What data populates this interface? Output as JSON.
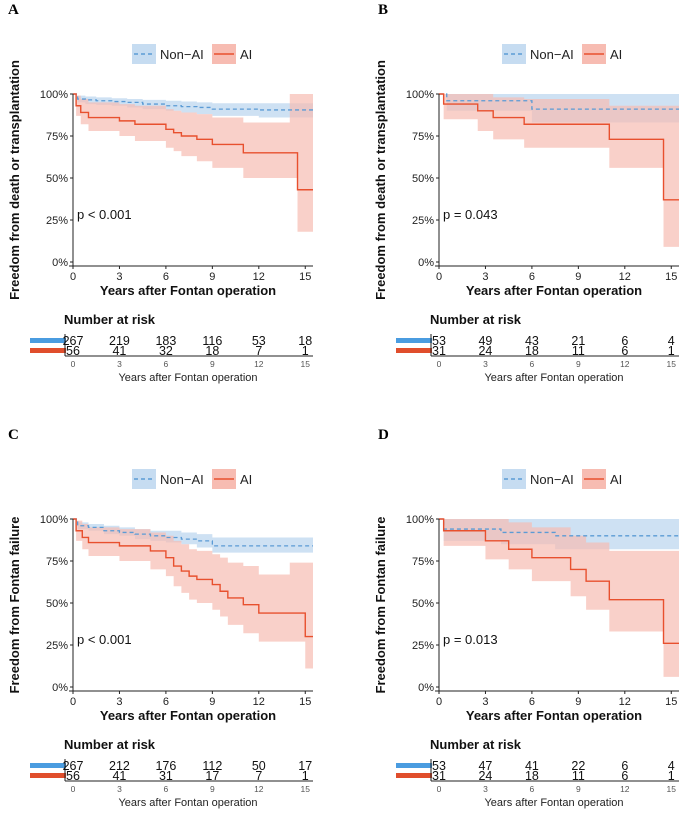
{
  "colors": {
    "non_ai": "#5b9bd5",
    "ai": "#e8502e",
    "non_ai_band": "#c6dcf1",
    "ai_band": "#f7bcb2",
    "risk_non_ai": "#4a9ce0",
    "risk_ai": "#e04e2c"
  },
  "legend": {
    "non_ai": "Non−AI",
    "ai": "AI"
  },
  "risk_table_title": "Number at risk",
  "chart_data": [
    {
      "type": "line",
      "panel": "A",
      "ylabel": "Freedom from death or transplantation",
      "xlabel": "Years after Fontan operation",
      "xlim": [
        0,
        15.5
      ],
      "ylim": [
        0,
        1
      ],
      "xticks": [
        0,
        3,
        6,
        9,
        12,
        15
      ],
      "yticks": [
        "0%",
        "25%",
        "50%",
        "75%",
        "100%"
      ],
      "pvalue": "p < 0.001",
      "series": [
        {
          "name": "Non−AI",
          "x": [
            0,
            0.3,
            0.8,
            1.5,
            2.5,
            3.5,
            4.5,
            6,
            7,
            8,
            9,
            12,
            15.5
          ],
          "y": [
            1.0,
            0.97,
            0.965,
            0.96,
            0.955,
            0.95,
            0.94,
            0.93,
            0.925,
            0.92,
            0.91,
            0.905,
            0.905
          ],
          "lower": [
            1.0,
            0.95,
            0.94,
            0.935,
            0.93,
            0.92,
            0.91,
            0.9,
            0.89,
            0.88,
            0.87,
            0.86,
            0.86
          ],
          "upper": [
            1.0,
            0.99,
            0.985,
            0.98,
            0.975,
            0.97,
            0.965,
            0.96,
            0.955,
            0.95,
            0.945,
            0.945,
            0.945
          ]
        },
        {
          "name": "AI",
          "x": [
            0,
            0.2,
            0.5,
            1,
            3,
            4,
            6,
            6.5,
            7,
            8,
            9,
            11,
            14,
            14.5,
            15.5
          ],
          "y": [
            1.0,
            0.93,
            0.89,
            0.86,
            0.84,
            0.82,
            0.79,
            0.77,
            0.75,
            0.73,
            0.7,
            0.65,
            0.65,
            0.43,
            0.43
          ],
          "lower": [
            1.0,
            0.87,
            0.82,
            0.78,
            0.75,
            0.72,
            0.68,
            0.66,
            0.63,
            0.6,
            0.56,
            0.5,
            0.5,
            0.18,
            0.18
          ],
          "upper": [
            1.0,
            0.99,
            0.97,
            0.95,
            0.94,
            0.93,
            0.91,
            0.9,
            0.89,
            0.88,
            0.86,
            0.83,
            1.0,
            1.0,
            1.0
          ]
        }
      ],
      "risk": {
        "non_ai": [
          "267",
          "219",
          "183",
          "116",
          "53",
          "18"
        ],
        "ai": [
          "56",
          "41",
          "32",
          "18",
          "7",
          "1"
        ]
      }
    },
    {
      "type": "line",
      "panel": "B",
      "ylabel": "Freedom from death or transplantation",
      "xlabel": "Years after Fontan operation",
      "xlim": [
        0,
        15.5
      ],
      "ylim": [
        0,
        1
      ],
      "xticks": [
        0,
        3,
        6,
        9,
        12,
        15
      ],
      "yticks": [
        "0%",
        "25%",
        "50%",
        "75%",
        "100%"
      ],
      "pvalue": "p = 0.043",
      "series": [
        {
          "name": "Non−AI",
          "x": [
            0,
            0.5,
            6,
            15.5
          ],
          "y": [
            1.0,
            0.96,
            0.91,
            0.91
          ],
          "lower": [
            1.0,
            0.9,
            0.83,
            0.83
          ],
          "upper": [
            1.0,
            1.0,
            1.0,
            1.0
          ]
        },
        {
          "name": "AI",
          "x": [
            0,
            0.3,
            2.5,
            3.5,
            5.5,
            11,
            14.5,
            15.5
          ],
          "y": [
            1.0,
            0.94,
            0.9,
            0.86,
            0.82,
            0.73,
            0.37,
            0.37
          ],
          "lower": [
            1.0,
            0.85,
            0.78,
            0.73,
            0.68,
            0.56,
            0.09,
            0.09
          ],
          "upper": [
            1.0,
            1.0,
            1.0,
            0.98,
            0.97,
            0.93,
            0.93,
            0.93
          ]
        }
      ],
      "risk": {
        "non_ai": [
          "53",
          "49",
          "43",
          "21",
          "6",
          "4"
        ],
        "ai": [
          "31",
          "24",
          "18",
          "11",
          "6",
          "1"
        ]
      }
    },
    {
      "type": "line",
      "panel": "C",
      "ylabel": "Freedom from Fontan failure",
      "xlabel": "Years after Fontan operation",
      "xlim": [
        0,
        15.5
      ],
      "ylim": [
        0,
        1
      ],
      "xticks": [
        0,
        3,
        6,
        9,
        12,
        15
      ],
      "yticks": [
        "0%",
        "25%",
        "50%",
        "75%",
        "100%"
      ],
      "pvalue": "p < 0.001",
      "series": [
        {
          "name": "Non−AI",
          "x": [
            0,
            0.3,
            1,
            2,
            3,
            4,
            5,
            6,
            7,
            8,
            9,
            15.5
          ],
          "y": [
            1.0,
            0.96,
            0.95,
            0.93,
            0.92,
            0.91,
            0.9,
            0.89,
            0.88,
            0.87,
            0.84,
            0.84
          ],
          "lower": [
            1.0,
            0.94,
            0.93,
            0.91,
            0.9,
            0.88,
            0.87,
            0.86,
            0.85,
            0.83,
            0.8,
            0.8
          ],
          "upper": [
            1.0,
            0.98,
            0.97,
            0.96,
            0.95,
            0.94,
            0.93,
            0.93,
            0.92,
            0.91,
            0.89,
            0.89
          ]
        },
        {
          "name": "AI",
          "x": [
            0,
            0.2,
            0.6,
            1,
            3,
            5,
            6,
            6.5,
            7,
            7.5,
            8,
            9,
            9.5,
            10,
            11,
            12,
            14,
            15,
            15.5
          ],
          "y": [
            1.0,
            0.93,
            0.89,
            0.86,
            0.84,
            0.81,
            0.77,
            0.72,
            0.69,
            0.66,
            0.64,
            0.61,
            0.57,
            0.53,
            0.49,
            0.44,
            0.44,
            0.3,
            0.3
          ],
          "lower": [
            1.0,
            0.87,
            0.82,
            0.78,
            0.75,
            0.7,
            0.66,
            0.6,
            0.56,
            0.52,
            0.5,
            0.46,
            0.42,
            0.37,
            0.32,
            0.27,
            0.27,
            0.11,
            0.11
          ],
          "upper": [
            1.0,
            0.99,
            0.97,
            0.95,
            0.94,
            0.92,
            0.9,
            0.87,
            0.85,
            0.82,
            0.81,
            0.79,
            0.77,
            0.74,
            0.72,
            0.67,
            0.74,
            0.74,
            0.74
          ]
        }
      ],
      "risk": {
        "non_ai": [
          "267",
          "212",
          "176",
          "112",
          "50",
          "17"
        ],
        "ai": [
          "56",
          "41",
          "31",
          "17",
          "7",
          "1"
        ]
      }
    },
    {
      "type": "line",
      "panel": "D",
      "ylabel": "Freedom from Fontan failure",
      "xlabel": "Years after Fontan operation",
      "xlim": [
        0,
        15.5
      ],
      "ylim": [
        0,
        1
      ],
      "xticks": [
        0,
        3,
        6,
        9,
        12,
        15
      ],
      "yticks": [
        "0%",
        "25%",
        "50%",
        "75%",
        "100%"
      ],
      "pvalue": "p = 0.013",
      "series": [
        {
          "name": "Non−AI",
          "x": [
            0,
            0.3,
            4,
            7.5,
            15.5
          ],
          "y": [
            1.0,
            0.94,
            0.92,
            0.9,
            0.9
          ],
          "lower": [
            1.0,
            0.87,
            0.85,
            0.82,
            0.82
          ],
          "upper": [
            1.0,
            1.0,
            1.0,
            1.0,
            1.0
          ]
        },
        {
          "name": "AI",
          "x": [
            0,
            0.3,
            3,
            4.5,
            6,
            8.5,
            9.5,
            11,
            12,
            14.5,
            15.5
          ],
          "y": [
            1.0,
            0.93,
            0.87,
            0.82,
            0.77,
            0.7,
            0.63,
            0.52,
            0.52,
            0.26,
            0.26
          ],
          "lower": [
            1.0,
            0.84,
            0.76,
            0.7,
            0.63,
            0.54,
            0.46,
            0.33,
            0.33,
            0.06,
            0.06
          ],
          "upper": [
            1.0,
            1.0,
            1.0,
            0.98,
            0.95,
            0.9,
            0.86,
            0.81,
            0.81,
            0.81,
            0.81
          ]
        }
      ],
      "risk": {
        "non_ai": [
          "53",
          "47",
          "41",
          "22",
          "6",
          "4"
        ],
        "ai": [
          "31",
          "24",
          "18",
          "11",
          "6",
          "1"
        ]
      }
    }
  ]
}
